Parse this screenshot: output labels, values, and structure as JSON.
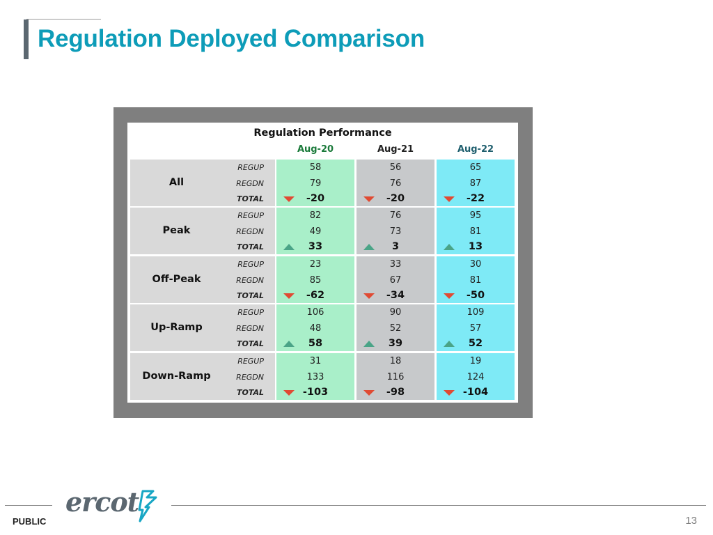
{
  "title": "Regulation Deployed Comparison",
  "table": {
    "title": "Regulation Performance",
    "columns": [
      "Aug-20",
      "Aug-21",
      "Aug-22"
    ],
    "sub_rows": [
      "REGUP",
      "REGDN",
      "TOTAL"
    ],
    "groups": [
      {
        "label": "All",
        "values": [
          [
            "58",
            "79",
            "-20"
          ],
          [
            "56",
            "76",
            "-20"
          ],
          [
            "65",
            "87",
            "-22"
          ]
        ],
        "trend": "down"
      },
      {
        "label": "Peak",
        "values": [
          [
            "82",
            "49",
            "33"
          ],
          [
            "76",
            "73",
            "3"
          ],
          [
            "95",
            "81",
            "13"
          ]
        ],
        "trend": "up"
      },
      {
        "label": "Off-Peak",
        "values": [
          [
            "23",
            "85",
            "-62"
          ],
          [
            "33",
            "67",
            "-34"
          ],
          [
            "30",
            "81",
            "-50"
          ]
        ],
        "trend": "down"
      },
      {
        "label": "Up-Ramp",
        "values": [
          [
            "106",
            "48",
            "58"
          ],
          [
            "90",
            "52",
            "39"
          ],
          [
            "109",
            "57",
            "52"
          ]
        ],
        "trend": "up"
      },
      {
        "label": "Down-Ramp",
        "values": [
          [
            "31",
            "133",
            "-103"
          ],
          [
            "18",
            "116",
            "-98"
          ],
          [
            "19",
            "124",
            "-104"
          ]
        ],
        "trend": "down"
      }
    ]
  },
  "footer": {
    "logo_text": "ercot",
    "classification": "PUBLIC",
    "page_number": "13"
  },
  "colors": {
    "title": "#0d9cb8",
    "aug20_fill": "#a9efc9",
    "aug21_fill": "#c7c9cb",
    "aug22_fill": "#7eeaf6",
    "arrow_down": "#e04a33",
    "arrow_up": "#4aa487"
  },
  "icons": {
    "up": "triangle-up-icon",
    "down": "triangle-down-icon",
    "logo": "ercot-logo-icon"
  }
}
